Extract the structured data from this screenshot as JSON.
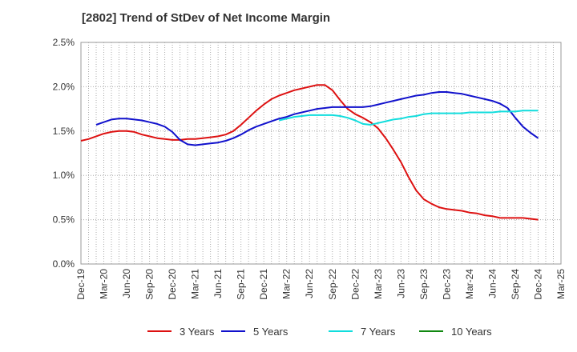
{
  "chart_data": {
    "type": "line",
    "title": "[2802]  Trend of StDev of Net Income Margin",
    "xlabel": "",
    "ylabel": "",
    "x_ticks": [
      "Dec-19",
      "Mar-20",
      "Jun-20",
      "Sep-20",
      "Dec-20",
      "Mar-21",
      "Jun-21",
      "Sep-21",
      "Dec-21",
      "Mar-22",
      "Jun-22",
      "Sep-22",
      "Dec-22",
      "Mar-23",
      "Jun-23",
      "Sep-23",
      "Dec-23",
      "Mar-24",
      "Jun-24",
      "Sep-24",
      "Dec-24",
      "Mar-25"
    ],
    "y_ticks": [
      "0.0%",
      "0.5%",
      "1.0%",
      "1.5%",
      "2.0%",
      "2.5%"
    ],
    "ylim": [
      0,
      2.5
    ],
    "grid": true,
    "legend_position": "bottom",
    "series": [
      {
        "name": "3 Years",
        "color": "#dd1111",
        "x": [
          "Dec-19",
          "Jan-20",
          "Feb-20",
          "Mar-20",
          "Apr-20",
          "May-20",
          "Jun-20",
          "Jul-20",
          "Aug-20",
          "Sep-20",
          "Oct-20",
          "Nov-20",
          "Dec-20",
          "Jan-21",
          "Feb-21",
          "Mar-21",
          "Apr-21",
          "May-21",
          "Jun-21",
          "Jul-21",
          "Aug-21",
          "Sep-21",
          "Oct-21",
          "Nov-21",
          "Dec-21",
          "Jan-22",
          "Feb-22",
          "Mar-22",
          "Apr-22",
          "May-22",
          "Jun-22",
          "Jul-22",
          "Aug-22",
          "Sep-22",
          "Oct-22",
          "Nov-22",
          "Dec-22",
          "Jan-23",
          "Feb-23",
          "Mar-23",
          "Apr-23",
          "May-23",
          "Jun-23",
          "Jul-23",
          "Aug-23",
          "Sep-23",
          "Oct-23",
          "Nov-23",
          "Dec-23",
          "Jan-24",
          "Feb-24",
          "Mar-24",
          "Apr-24",
          "May-24",
          "Jun-24",
          "Jul-24",
          "Aug-24",
          "Sep-24",
          "Oct-24",
          "Nov-24",
          "Dec-24"
        ],
        "values": [
          1.39,
          1.41,
          1.44,
          1.47,
          1.49,
          1.5,
          1.5,
          1.49,
          1.46,
          1.44,
          1.42,
          1.41,
          1.4,
          1.4,
          1.41,
          1.41,
          1.42,
          1.43,
          1.44,
          1.46,
          1.5,
          1.57,
          1.65,
          1.73,
          1.8,
          1.86,
          1.9,
          1.93,
          1.96,
          1.98,
          2.0,
          2.02,
          2.02,
          1.96,
          1.85,
          1.75,
          1.69,
          1.65,
          1.6,
          1.53,
          1.42,
          1.29,
          1.15,
          0.98,
          0.83,
          0.73,
          0.68,
          0.64,
          0.62,
          0.61,
          0.6,
          0.58,
          0.57,
          0.55,
          0.54,
          0.52,
          0.52,
          0.52,
          0.52,
          0.51,
          0.5
        ]
      },
      {
        "name": "5 Years",
        "color": "#1111cc",
        "x": [
          "Dec-19",
          "Jan-20",
          "Feb-20",
          "Mar-20",
          "Apr-20",
          "May-20",
          "Jun-20",
          "Jul-20",
          "Aug-20",
          "Sep-20",
          "Oct-20",
          "Nov-20",
          "Dec-20",
          "Jan-21",
          "Feb-21",
          "Mar-21",
          "Apr-21",
          "May-21",
          "Jun-21",
          "Jul-21",
          "Aug-21",
          "Sep-21",
          "Oct-21",
          "Nov-21",
          "Dec-21",
          "Jan-22",
          "Feb-22",
          "Mar-22",
          "Apr-22",
          "May-22",
          "Jun-22",
          "Jul-22",
          "Aug-22",
          "Sep-22",
          "Oct-22",
          "Nov-22",
          "Dec-22",
          "Jan-23",
          "Feb-23",
          "Mar-23",
          "Apr-23",
          "May-23",
          "Jun-23",
          "Jul-23",
          "Aug-23",
          "Sep-23",
          "Oct-23",
          "Nov-23",
          "Dec-23",
          "Jan-24",
          "Feb-24",
          "Mar-24",
          "Apr-24",
          "May-24",
          "Jun-24",
          "Jul-24",
          "Aug-24",
          "Sep-24",
          "Oct-24",
          "Nov-24",
          "Dec-24"
        ],
        "values": [
          null,
          null,
          1.57,
          1.6,
          1.63,
          1.64,
          1.64,
          1.63,
          1.62,
          1.6,
          1.58,
          1.55,
          1.49,
          1.4,
          1.35,
          1.34,
          1.35,
          1.36,
          1.37,
          1.39,
          1.42,
          1.46,
          1.51,
          1.55,
          1.58,
          1.61,
          1.64,
          1.66,
          1.69,
          1.71,
          1.73,
          1.75,
          1.76,
          1.77,
          1.77,
          1.77,
          1.77,
          1.77,
          1.78,
          1.8,
          1.82,
          1.84,
          1.86,
          1.88,
          1.9,
          1.91,
          1.93,
          1.94,
          1.94,
          1.93,
          1.92,
          1.9,
          1.88,
          1.86,
          1.84,
          1.81,
          1.76,
          1.65,
          1.55,
          1.48,
          1.42
        ]
      },
      {
        "name": "7 Years",
        "color": "#11dddd",
        "x": [
          "Feb-22",
          "Mar-22",
          "Apr-22",
          "May-22",
          "Jun-22",
          "Jul-22",
          "Aug-22",
          "Sep-22",
          "Oct-22",
          "Nov-22",
          "Dec-22",
          "Jan-23",
          "Feb-23",
          "Mar-23",
          "Apr-23",
          "May-23",
          "Jun-23",
          "Jul-23",
          "Aug-23",
          "Sep-23",
          "Oct-23",
          "Nov-23",
          "Dec-23",
          "Jan-24",
          "Feb-24",
          "Mar-24",
          "Apr-24",
          "May-24",
          "Jun-24",
          "Jul-24",
          "Aug-24",
          "Sep-24",
          "Oct-24",
          "Nov-24",
          "Dec-24"
        ],
        "values": [
          1.62,
          1.64,
          1.66,
          1.67,
          1.68,
          1.68,
          1.68,
          1.68,
          1.67,
          1.65,
          1.62,
          1.58,
          1.57,
          1.59,
          1.61,
          1.63,
          1.64,
          1.66,
          1.67,
          1.69,
          1.7,
          1.7,
          1.7,
          1.7,
          1.7,
          1.71,
          1.71,
          1.71,
          1.71,
          1.72,
          1.72,
          1.72,
          1.73,
          1.73,
          1.73
        ]
      },
      {
        "name": "10 Years",
        "color": "#118811",
        "x": [],
        "values": []
      }
    ]
  }
}
